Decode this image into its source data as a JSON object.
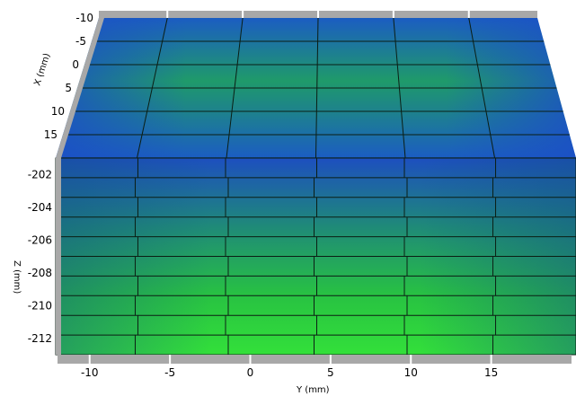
{
  "chart_data": {
    "type": "heatmap",
    "colormap": [
      "#1a52c4",
      "#1e8a7a",
      "#2fd23c"
    ],
    "frame_color": "#a8a8a8",
    "top_face": {
      "y_range": [
        -12,
        20
      ],
      "x_range": [
        -10,
        20
      ],
      "x_ticks": [
        "-10",
        "-5",
        "0",
        "5",
        "10",
        "15"
      ],
      "x_label": "X (mm)",
      "y_grid_lines": [
        -7,
        -1.5,
        4,
        9.5,
        15
      ]
    },
    "front_face": {
      "y_range": [
        -12,
        20
      ],
      "z_range": [
        -213,
        -201
      ],
      "z_ticks": [
        "-202",
        "-204",
        "-206",
        "-208",
        "-210",
        "-212"
      ],
      "z_label": "Z (mm)"
    },
    "bottom_axis": {
      "ticks": [
        "-10",
        "-5",
        "0",
        "5",
        "10",
        "15"
      ],
      "tick_values": [
        -10,
        -5,
        0,
        5,
        10,
        15
      ],
      "label": "Y (mm)"
    }
  }
}
